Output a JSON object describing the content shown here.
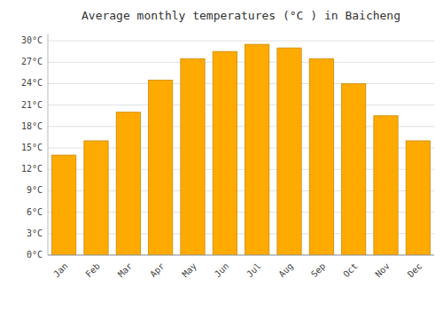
{
  "chart_data": {
    "type": "bar",
    "title": "Average monthly temperatures (°C ) in Baicheng",
    "categories": [
      "Jan",
      "Feb",
      "Mar",
      "Apr",
      "May",
      "Jun",
      "Jul",
      "Aug",
      "Sep",
      "Oct",
      "Nov",
      "Dec"
    ],
    "values": [
      14.0,
      16.0,
      20.0,
      24.5,
      27.5,
      28.5,
      29.5,
      29.0,
      27.5,
      24.0,
      19.5,
      16.0
    ],
    "color": "#FFAA00",
    "ylim": [
      0,
      31
    ],
    "yticks": [
      {
        "value": 0,
        "label": "0°C"
      },
      {
        "value": 3,
        "label": "3°C"
      },
      {
        "value": 6,
        "label": "6°C"
      },
      {
        "value": 9,
        "label": "9°C"
      },
      {
        "value": 12,
        "label": "12°C"
      },
      {
        "value": 15,
        "label": "15°C"
      },
      {
        "value": 18,
        "label": "18°C"
      },
      {
        "value": 21,
        "label": "21°C"
      },
      {
        "value": 24,
        "label": "24°C"
      },
      {
        "value": 27,
        "label": "27°C"
      },
      {
        "value": 30,
        "label": "30°C"
      }
    ],
    "grid": true
  }
}
